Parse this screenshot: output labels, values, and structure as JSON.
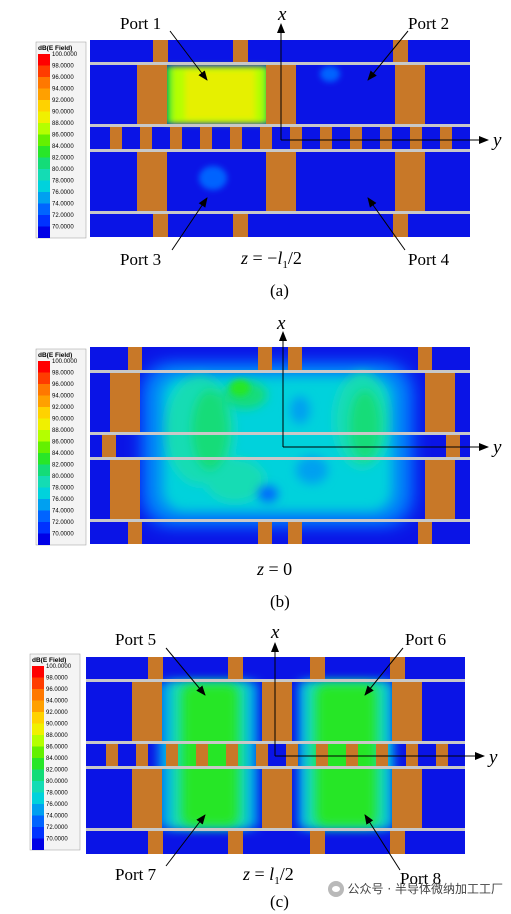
{
  "legend": {
    "title": "dB(E Field)",
    "values": [
      "100.0000",
      "98.0000",
      "96.0000",
      "94.0000",
      "92.0000",
      "90.0000",
      "88.0000",
      "86.0000",
      "84.0000",
      "82.0000",
      "80.0000",
      "78.0000",
      "76.0000",
      "74.0000",
      "72.0000",
      "70.0000"
    ],
    "colors": [
      "#ff0000",
      "#ff3c00",
      "#ff7800",
      "#ffa000",
      "#ffd200",
      "#f0f000",
      "#b4ff00",
      "#64f000",
      "#28e628",
      "#14dc78",
      "#14dcb4",
      "#00d2dc",
      "#00a0f0",
      "#0064ff",
      "#0032ff",
      "#0000e6"
    ]
  },
  "panels": [
    {
      "id": "a",
      "caption": "(a)",
      "section": "z = −l1/2",
      "section_parts": [
        "z",
        " = −",
        "l",
        "1",
        "/2"
      ],
      "ports": [
        "Port 1",
        "Port 2",
        "Port 3",
        "Port 4"
      ],
      "axis_x": "x",
      "axis_y": "y"
    },
    {
      "id": "b",
      "caption": "(b)",
      "section": "z = 0",
      "section_parts": [
        "z",
        " = 0"
      ],
      "ports": [],
      "axis_x": "x",
      "axis_y": "y"
    },
    {
      "id": "c",
      "caption": "(c)",
      "section": "z = l1/2",
      "section_parts": [
        "z",
        " = ",
        "l",
        "1",
        "/2"
      ],
      "ports": [
        "Port 5",
        "Port 6",
        "Port 7",
        "Port 8"
      ],
      "axis_x": "x",
      "axis_y": "y"
    }
  ],
  "watermark": "公众号 · 半导体微纳加工工厂",
  "colors": {
    "background_field": "#0a14e6",
    "pin": "#c87828",
    "rail": "#c8c8c8"
  }
}
